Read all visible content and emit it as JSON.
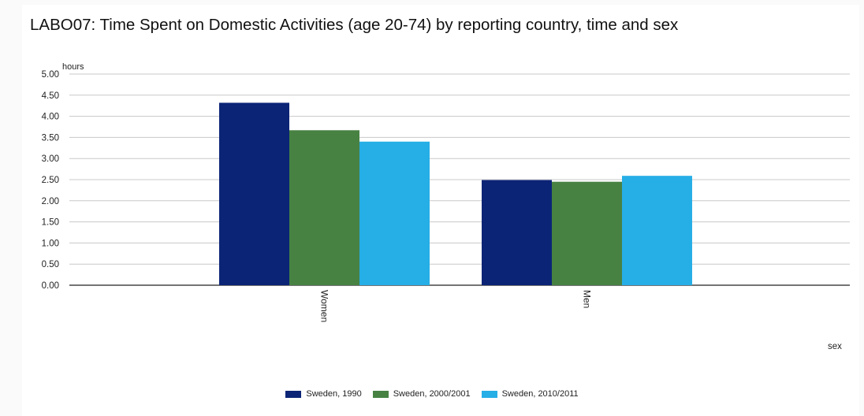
{
  "chart_data": {
    "type": "bar",
    "title": "LABO07: Time Spent on Domestic Activities (age 20-74) by reporting country, time and sex",
    "ylabel": "hours",
    "xlabel": "sex",
    "ylim": [
      0,
      5
    ],
    "yticks": [
      "0.00",
      "0.50",
      "1.00",
      "1.50",
      "2.00",
      "2.50",
      "3.00",
      "3.50",
      "4.00",
      "4.50",
      "5.00"
    ],
    "categories": [
      "Women",
      "Men"
    ],
    "series": [
      {
        "name": "Sweden, 1990",
        "color": "#0b2476",
        "values": [
          4.32,
          2.49
        ]
      },
      {
        "name": "Sweden, 2000/2001",
        "color": "#478243",
        "values": [
          3.67,
          2.45
        ]
      },
      {
        "name": "Sweden, 2010/2011",
        "color": "#26aee6",
        "values": [
          3.4,
          2.59
        ]
      }
    ],
    "grid": true,
    "legend_position": "bottom-center"
  }
}
